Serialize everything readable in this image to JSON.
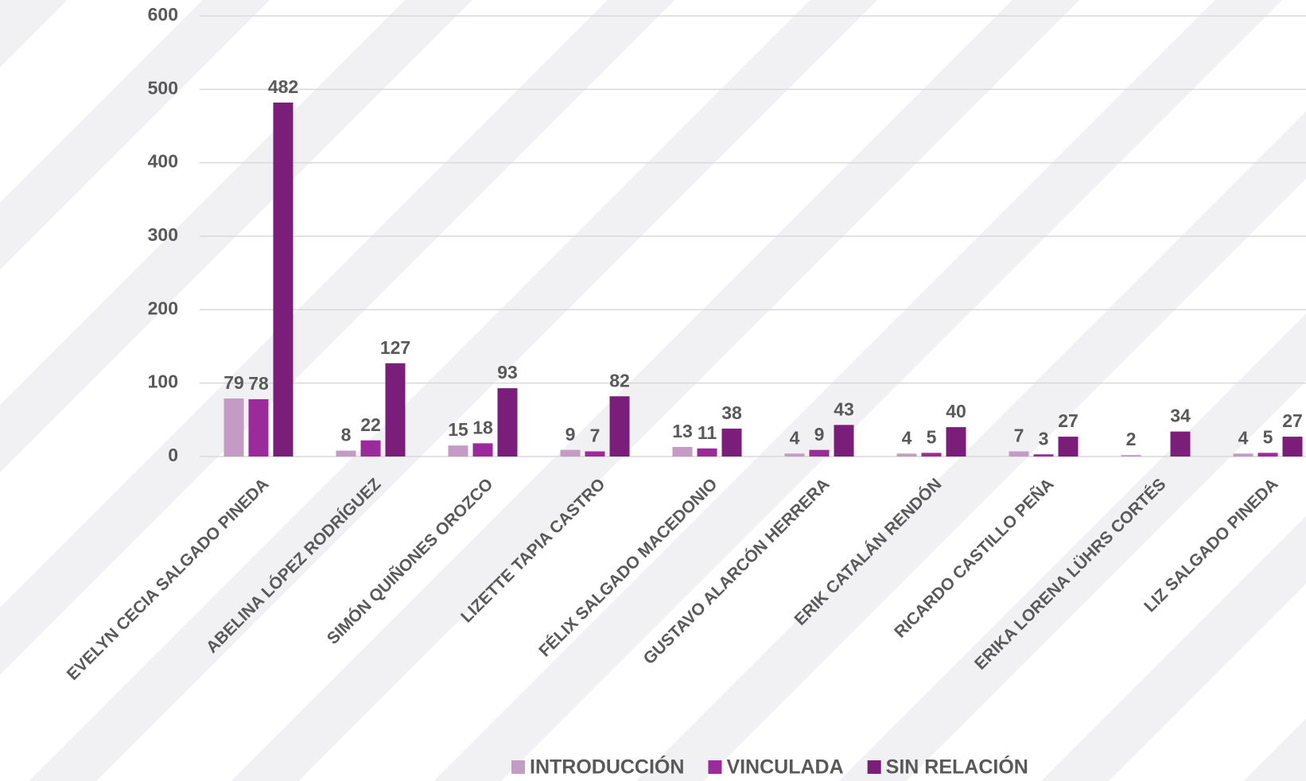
{
  "chart_data": {
    "type": "bar",
    "categories": [
      "EVELYN CECIA SALGADO PINEDA",
      "ABELINA LÓPEZ RODRÍGUEZ",
      "SIMÓN QUIÑONES OROZCO",
      "LIZETTE TAPIA CASTRO",
      "FÉLIX SALGADO MACEDONIO",
      "GUSTAVO ALARCÓN HERRERA",
      "ERIK CATALÁN RENDÓN",
      "RICARDO CASTILLO PEÑA",
      "ERIKA LORENA LÜHRS CORTÉS",
      "LIZ SALGADO PINEDA"
    ],
    "series": [
      {
        "name": "INTRODUCCIÓN",
        "color": "#c39bc4",
        "values": [
          79,
          8,
          15,
          9,
          13,
          4,
          4,
          7,
          2,
          4
        ]
      },
      {
        "name": "VINCULADA",
        "color": "#9b2a9b",
        "values": [
          78,
          22,
          18,
          7,
          11,
          9,
          5,
          3,
          null,
          5
        ]
      },
      {
        "name": "SIN RELACIÓN",
        "color": "#7b1e7a",
        "values": [
          482,
          127,
          93,
          82,
          38,
          43,
          40,
          27,
          34,
          27
        ]
      }
    ],
    "ylim": [
      0,
      600
    ],
    "yticks": [
      0,
      100,
      200,
      300,
      400,
      500,
      600
    ],
    "grid": true,
    "legend": "bottom"
  }
}
